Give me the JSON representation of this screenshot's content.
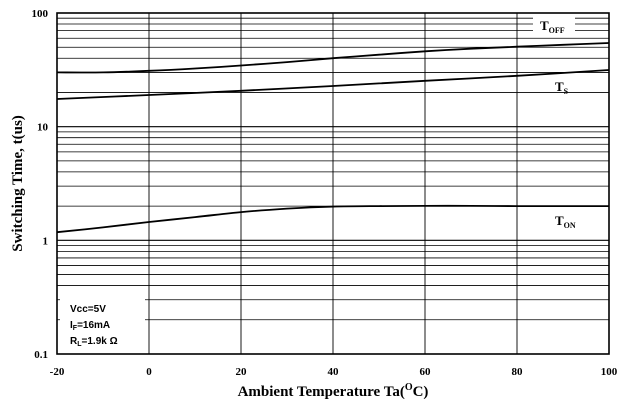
{
  "chart_data": {
    "type": "line",
    "xlabel": {
      "main": "Ambient Temperature Ta(",
      "sup": "O",
      "end": "C)"
    },
    "ylabel": "Switching Time, t(us)",
    "xlim": [
      -20,
      100
    ],
    "ylim": [
      0.1,
      100
    ],
    "y_scale": "log",
    "grid": true,
    "x_ticks": [
      "-20",
      "0",
      "20",
      "40",
      "60",
      "80",
      "100"
    ],
    "x_tick_values": [
      -20,
      0,
      20,
      40,
      60,
      80,
      100
    ],
    "y_ticks": [
      "0.1",
      "1",
      "10",
      "100"
    ],
    "y_tick_values": [
      0.1,
      1,
      10,
      100
    ],
    "series": [
      {
        "label_main": "T",
        "label_sub": "OFF",
        "x": [
          -20,
          -10,
          0,
          10,
          20,
          30,
          40,
          50,
          60,
          70,
          80,
          90,
          100
        ],
        "y": [
          30,
          30,
          31,
          32.5,
          34.5,
          37,
          40,
          43,
          46,
          48.5,
          50.5,
          52.5,
          54.5
        ]
      },
      {
        "label_main": "T",
        "label_sub": "S",
        "x": [
          -20,
          0,
          20,
          40,
          60,
          80,
          100
        ],
        "y": [
          17.5,
          19,
          20.7,
          22.8,
          25.3,
          28,
          31.5
        ]
      },
      {
        "label_main": "T",
        "label_sub": "ON",
        "x": [
          -20,
          -10,
          0,
          10,
          20,
          30,
          40,
          50,
          60,
          70,
          80,
          90,
          100
        ],
        "y": [
          1.18,
          1.3,
          1.45,
          1.6,
          1.77,
          1.9,
          1.98,
          2.0,
          2.01,
          2.01,
          2.0,
          2.0,
          2.0
        ]
      }
    ],
    "conditions": [
      {
        "main": "Vcc=5V",
        "sub": "",
        "rest": ""
      },
      {
        "main": "I",
        "sub": "F",
        "rest": "=16mA"
      },
      {
        "main": "R",
        "sub": "L",
        "rest": "=1.9k Ω"
      }
    ]
  }
}
